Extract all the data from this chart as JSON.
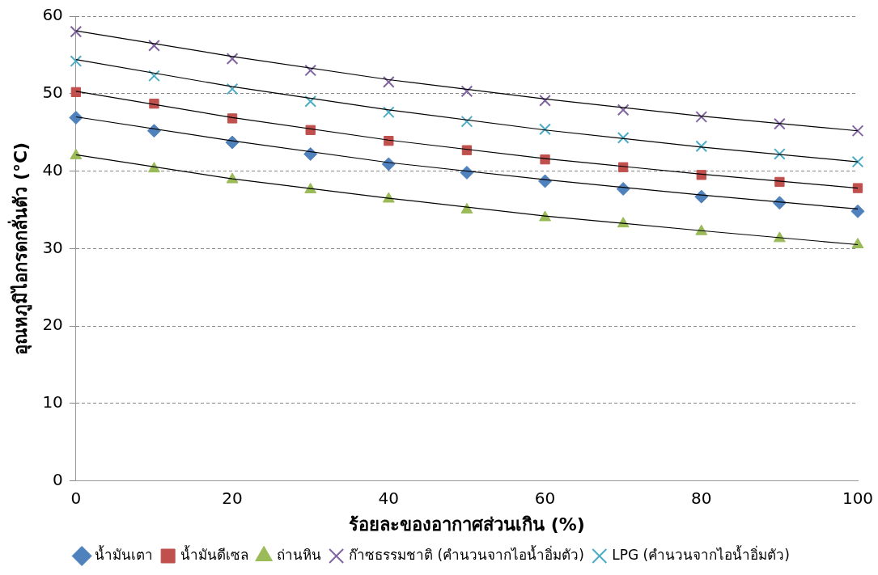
{
  "chart_data": {
    "type": "scatter",
    "xlabel": "ร้อยละของอากาศส่วนเกิน (%)",
    "ylabel": "อุณหภูมิไอกรดกลั่นตัว (°C)",
    "x": [
      0,
      10,
      20,
      30,
      40,
      50,
      60,
      70,
      80,
      90,
      100
    ],
    "xlim": [
      0,
      100
    ],
    "xticks": [
      0,
      20,
      40,
      60,
      80,
      100
    ],
    "ylim": [
      0,
      60
    ],
    "yticks": [
      0,
      10,
      20,
      30,
      40,
      50,
      60
    ],
    "grid": "y",
    "legend": "bottom",
    "series": [
      {
        "name": "น้ำมันเตา",
        "color": "#4f81bd",
        "marker": "diamond",
        "values": [
          46.9,
          45.2,
          43.7,
          42.2,
          40.9,
          39.8,
          38.7,
          37.7,
          36.7,
          35.9,
          34.8
        ]
      },
      {
        "name": "น้ำมันดีเซล",
        "color": "#c0504d",
        "marker": "square",
        "values": [
          50.2,
          48.7,
          46.8,
          45.3,
          43.9,
          42.7,
          41.5,
          40.5,
          39.5,
          38.6,
          37.8
        ]
      },
      {
        "name": "ถ่านหิน",
        "color": "#9bbb59",
        "marker": "triangle",
        "values": [
          42.0,
          40.3,
          38.9,
          37.6,
          36.4,
          35.0,
          34.0,
          33.2,
          32.2,
          31.3,
          30.5
        ]
      },
      {
        "name": "ก๊าซธรรมชาติ (คำนวนจากไอน้ำอิ่มตัว)",
        "color": "#8064a2",
        "marker": "cross",
        "values": [
          58.0,
          56.2,
          54.5,
          53.0,
          51.5,
          50.3,
          49.1,
          47.9,
          47.0,
          46.1,
          45.2
        ]
      },
      {
        "name": "LPG (คำนวนจากไอน้ำอิ่มตัว)",
        "color": "#4bacc6",
        "marker": "cross",
        "values": [
          54.2,
          52.3,
          50.6,
          49.0,
          47.6,
          46.4,
          45.4,
          44.3,
          43.2,
          42.2,
          41.2
        ]
      },
      {
        "type": "line",
        "color": "#000000",
        "marker": "none",
        "x": [
          0,
          20,
          40,
          60,
          80,
          100
        ],
        "values": [
          47.0,
          43.9,
          41.1,
          38.9,
          36.9,
          35.1
        ]
      },
      {
        "type": "line",
        "color": "#000000",
        "marker": "none",
        "x": [
          0,
          20,
          40,
          60,
          80,
          100
        ],
        "values": [
          50.3,
          46.9,
          44.0,
          41.6,
          39.6,
          37.8
        ]
      },
      {
        "type": "line",
        "color": "#000000",
        "marker": "none",
        "x": [
          0,
          20,
          40,
          60,
          80,
          100
        ],
        "values": [
          42.1,
          39.0,
          36.5,
          34.2,
          32.3,
          30.5
        ]
      },
      {
        "type": "line",
        "color": "#000000",
        "marker": "none",
        "x": [
          0,
          20,
          40,
          60,
          80,
          100
        ],
        "values": [
          58.1,
          54.8,
          51.8,
          49.3,
          47.1,
          45.2
        ]
      },
      {
        "type": "line",
        "color": "#000000",
        "marker": "none",
        "x": [
          0,
          20,
          40,
          60,
          80,
          100
        ],
        "values": [
          54.4,
          50.9,
          47.9,
          45.3,
          43.1,
          41.2
        ]
      }
    ]
  }
}
